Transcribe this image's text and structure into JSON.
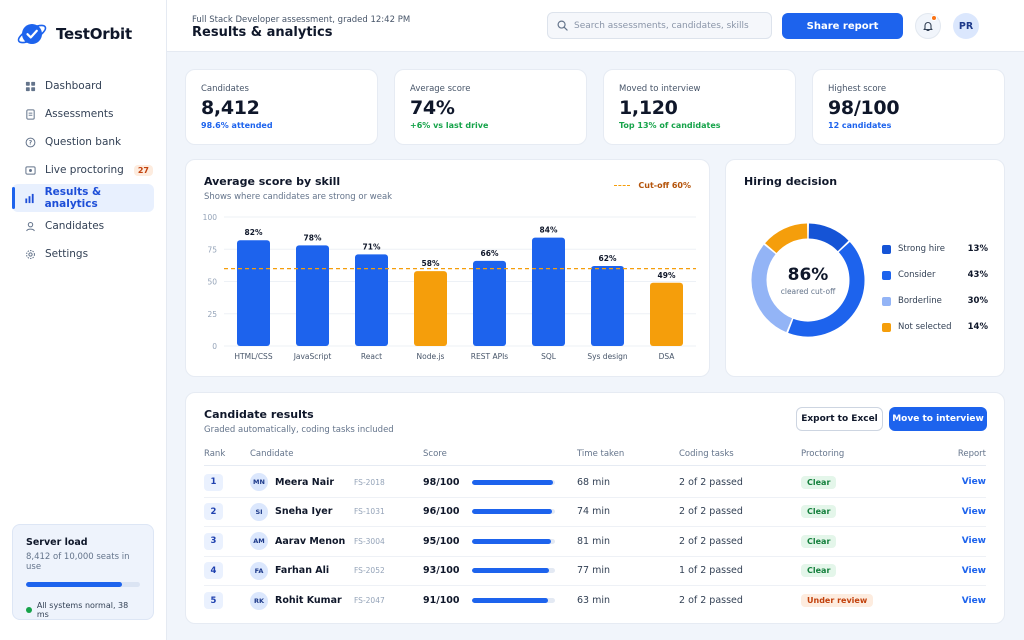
{
  "app": {
    "name": "TestOrbit"
  },
  "sidebar": {
    "items": [
      {
        "label": "Dashboard",
        "icon": "grid-icon",
        "active": false
      },
      {
        "label": "Assessments",
        "icon": "clipboard-icon",
        "active": false
      },
      {
        "label": "Question bank",
        "icon": "question-icon",
        "active": false
      },
      {
        "label": "Live proctoring",
        "icon": "video-icon",
        "active": false,
        "badge": "27"
      },
      {
        "label": "Results & analytics",
        "icon": "bar-chart-icon",
        "active": true
      },
      {
        "label": "Candidates",
        "icon": "user-icon",
        "active": false
      },
      {
        "label": "Settings",
        "icon": "gear-icon",
        "active": false
      }
    ],
    "server": {
      "title": "Server load",
      "subtitle": "8,412 of 10,000 seats in use",
      "load_fraction": 0.841,
      "status": "All systems normal, 38 ms"
    }
  },
  "header": {
    "subtitle": "Full Stack Developer assessment, graded 12:42 PM",
    "title": "Results & analytics",
    "search_placeholder": "Search assessments, candidates, skills",
    "share_label": "Share report",
    "avatar_initials": "PR"
  },
  "kpis": [
    {
      "label": "Candidates",
      "value": "8,412",
      "note": "98.6% attended",
      "note_color": "#1d63ed"
    },
    {
      "label": "Average score",
      "value": "74%",
      "note": "+6% vs last drive",
      "note_color": "#16a34a"
    },
    {
      "label": "Moved to interview",
      "value": "1,120",
      "note": "Top 13% of candidates",
      "note_color": "#16a34a"
    },
    {
      "label": "Highest score",
      "value": "98/100",
      "note": "12 candidates",
      "note_color": "#1d63ed"
    }
  ],
  "skill_chart": {
    "title": "Average score by skill",
    "subtitle": "Shows where candidates are strong or weak",
    "cutoff_label": "Cut-off 60%"
  },
  "hiring": {
    "title": "Hiring decision",
    "center_value": "86%",
    "center_label": "cleared cut-off",
    "segments": [
      {
        "label": "Strong hire",
        "value": 13,
        "pct": "13%",
        "color": "#1554d6"
      },
      {
        "label": "Consider",
        "value": 43,
        "pct": "43%",
        "color": "#1d63ed"
      },
      {
        "label": "Borderline",
        "value": 30,
        "pct": "30%",
        "color": "#93b4f6"
      },
      {
        "label": "Not selected",
        "value": 14,
        "pct": "14%",
        "color": "#f59e0b"
      }
    ]
  },
  "table": {
    "title": "Candidate results",
    "subtitle": "Graded automatically, coding tasks included",
    "export_label": "Export to Excel",
    "move_label": "Move to interview",
    "headers": {
      "rank": "Rank",
      "candidate": "Candidate",
      "score": "Score",
      "time": "Time taken",
      "coding": "Coding tasks",
      "proctoring": "Proctoring",
      "report": "Report"
    },
    "rows": [
      {
        "rank": "1",
        "initials": "MN",
        "name": "Meera Nair",
        "id": "FS-2018",
        "score": "98/100",
        "score_frac": 0.98,
        "time": "68 min",
        "coding": "2 of 2 passed",
        "proctoring": "Clear",
        "status": "clear",
        "report": "View"
      },
      {
        "rank": "2",
        "initials": "SI",
        "name": "Sneha Iyer",
        "id": "FS-1031",
        "score": "96/100",
        "score_frac": 0.96,
        "time": "74 min",
        "coding": "2 of 2 passed",
        "proctoring": "Clear",
        "status": "clear",
        "report": "View"
      },
      {
        "rank": "3",
        "initials": "AM",
        "name": "Aarav Menon",
        "id": "FS-3004",
        "score": "95/100",
        "score_frac": 0.95,
        "time": "81 min",
        "coding": "2 of 2 passed",
        "proctoring": "Clear",
        "status": "clear",
        "report": "View"
      },
      {
        "rank": "4",
        "initials": "FA",
        "name": "Farhan Ali",
        "id": "FS-2052",
        "score": "93/100",
        "score_frac": 0.93,
        "time": "77 min",
        "coding": "1 of 2 passed",
        "proctoring": "Clear",
        "status": "clear",
        "report": "View"
      },
      {
        "rank": "5",
        "initials": "RK",
        "name": "Rohit Kumar",
        "id": "FS-2047",
        "score": "91/100",
        "score_frac": 0.91,
        "time": "63 min",
        "coding": "2 of 2 passed",
        "proctoring": "Under review",
        "status": "review",
        "report": "View"
      }
    ]
  },
  "chart_data": {
    "type": "bar",
    "title": "Average score by skill",
    "categories": [
      "HTML/CSS",
      "JavaScript",
      "React",
      "Node.js",
      "REST APIs",
      "SQL",
      "Sys design",
      "DSA"
    ],
    "values": [
      82,
      78,
      71,
      58,
      66,
      84,
      62,
      49
    ],
    "value_labels": [
      "82%",
      "78%",
      "71%",
      "58%",
      "66%",
      "84%",
      "62%",
      "49%"
    ],
    "ylim": [
      0,
      100
    ],
    "yticks": [
      "0",
      "25",
      "50",
      "75",
      "100"
    ],
    "cutoff": 60,
    "colors": {
      "above": "#1d63ed",
      "below": "#f59e0b",
      "cutoff": "#f59e0b"
    },
    "grid": true
  }
}
